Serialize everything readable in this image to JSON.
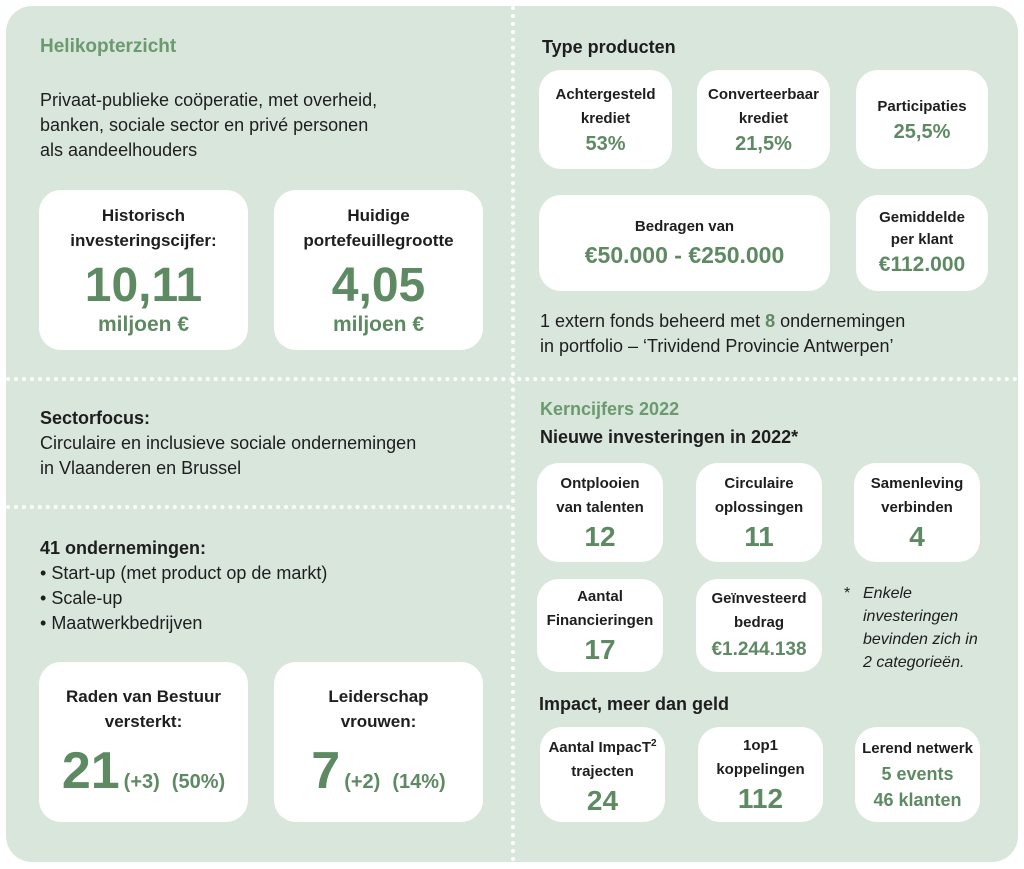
{
  "overview": {
    "title": "Helikopterzicht",
    "desc_lines": [
      "Privaat-publieke coöperatie, met overheid,",
      "banken, sociale sector en privé personen",
      "als aandeelhouders"
    ],
    "historic": {
      "label1": "Historisch",
      "label2": "investeringscijfer:",
      "value": "10,11",
      "unit": "miljoen €"
    },
    "portfolio": {
      "label1": "Huidige",
      "label2": "portefeuillegrootte",
      "value": "4,05",
      "unit": "miljoen €"
    }
  },
  "products": {
    "title": "Type producten",
    "items": [
      {
        "l1": "Achtergesteld",
        "l2": "krediet",
        "value": "53%"
      },
      {
        "l1": "Converteerbaar",
        "l2": "krediet",
        "value": "21,5%"
      },
      {
        "l1": "Participaties",
        "l2": "",
        "value": "25,5%"
      }
    ],
    "amounts": {
      "label": "Bedragen van",
      "value": "€50.000 - €250.000"
    },
    "average": {
      "l1": "Gemiddelde",
      "l2": "per klant",
      "value": "€112.000"
    },
    "fund_line1_pre": "1 extern fonds beheerd met ",
    "fund_count": "8",
    "fund_line1_post": " ondernemingen",
    "fund_line2": "in portfolio – ‘Trividend Provincie Antwerpen’"
  },
  "sector": {
    "title": "Sectorfocus:",
    "lines": [
      "Circulaire en inclusieve sociale ondernemingen",
      "in Vlaanderen en Brussel"
    ]
  },
  "companies": {
    "title": "41 ondernemingen:",
    "bullets": [
      "Start-up (met product op de markt)",
      "Scale-up",
      "Maatwerkbedrijven"
    ],
    "boards": {
      "l1": "Raden van Bestuur",
      "l2": "versterkt:",
      "value": "21",
      "extra": "(+3)",
      "pct": "(50%)"
    },
    "women": {
      "l1": "Leiderschap",
      "l2": "vrouwen:",
      "value": "7",
      "extra": "(+2)",
      "pct": "(14%)"
    }
  },
  "kpi": {
    "title": "Kerncijfers 2022",
    "subtitle": "Nieuwe investeringen in 2022*",
    "items": [
      {
        "l1": "Ontplooien",
        "l2": "van talenten",
        "value": "12"
      },
      {
        "l1": "Circulaire",
        "l2": "oplossingen",
        "value": "11"
      },
      {
        "l1": "Samenleving",
        "l2": "verbinden",
        "value": "4"
      },
      {
        "l1": "Aantal",
        "l2": "Financieringen",
        "value": "17"
      },
      {
        "l1": "Geïnvesteerd",
        "l2": "bedrag",
        "value": "€1.244.138"
      }
    ],
    "note_star": "*",
    "note_lines": [
      "Enkele",
      "investeringen",
      "bevinden zich in",
      "2 categorieën."
    ]
  },
  "impact": {
    "title": "Impact, meer dan geld",
    "trajects": {
      "l1": "Aantal ImpacT",
      "sup": "2",
      "l2": "trajecten",
      "value": "24"
    },
    "matches": {
      "l1": "1op1",
      "l2": "koppelingen",
      "value": "112"
    },
    "network": {
      "l1": "Lerend netwerk",
      "v1": "5 events",
      "v2": "46 klanten"
    }
  }
}
